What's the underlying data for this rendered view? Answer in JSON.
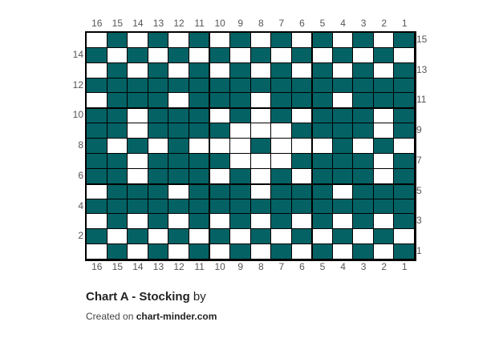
{
  "chart": {
    "columns": [
      "16",
      "15",
      "14",
      "13",
      "12",
      "11",
      "10",
      "9",
      "8",
      "7",
      "6",
      "5",
      "4",
      "3",
      "2",
      "1"
    ],
    "row_labels_right": [
      "15",
      "13",
      "11",
      "9",
      "7",
      "5",
      "3",
      "1"
    ],
    "row_labels_left": [
      "14",
      "12",
      "10",
      "8",
      "6",
      "4",
      "2"
    ],
    "colors": {
      "filled": "#046265",
      "empty": "#ffffff"
    },
    "rows_top_to_bottom": [
      "0101010101010101",
      "1010101010101010",
      "0101010101010101",
      "1111111111111111",
      "0111011101110111",
      "1101110101011101",
      "1101111000111101",
      "1010100010001010",
      "1101111000111101",
      "1101110101011101",
      "0111011101110111",
      "1111111111111111",
      "0101010101010101",
      "1010101010101010",
      "0101010101010101"
    ]
  },
  "footer": {
    "title": "Chart A - Stocking",
    "by": "by",
    "created_on": "Created on",
    "site": "chart-minder.com"
  }
}
